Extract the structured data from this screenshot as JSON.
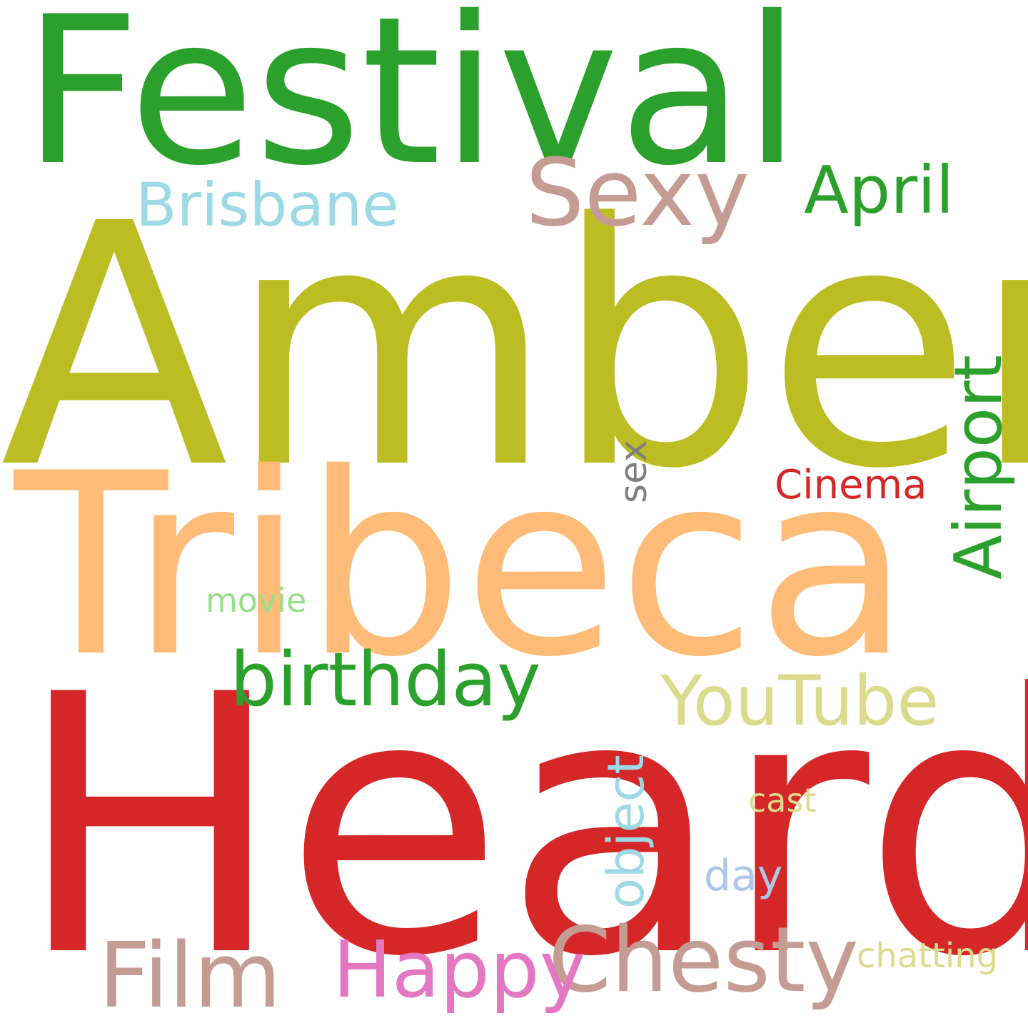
{
  "word_cloud": {
    "background": "#ffffff",
    "words": [
      {
        "key": "festival",
        "text": "Festival",
        "color": "#2ca02c",
        "orientation": "horizontal"
      },
      {
        "key": "amber",
        "text": "Amber",
        "color": "#bcbd22",
        "orientation": "horizontal"
      },
      {
        "key": "heard",
        "text": "Heard",
        "color": "#d62728",
        "orientation": "horizontal"
      },
      {
        "key": "tribeca",
        "text": "Tribeca",
        "color": "#ffbb78",
        "orientation": "horizontal"
      },
      {
        "key": "sexy",
        "text": "Sexy",
        "color": "#c49c94",
        "orientation": "horizontal"
      },
      {
        "key": "brisbane",
        "text": "Brisbane",
        "color": "#9edae5",
        "orientation": "horizontal"
      },
      {
        "key": "april",
        "text": "April",
        "color": "#2ca02c",
        "orientation": "horizontal"
      },
      {
        "key": "airport",
        "text": "Airport",
        "color": "#2ca02c",
        "orientation": "vertical"
      },
      {
        "key": "sex",
        "text": "sex",
        "color": "#7f7f7f",
        "orientation": "vertical"
      },
      {
        "key": "cinema",
        "text": "Cinema",
        "color": "#d62728",
        "orientation": "horizontal"
      },
      {
        "key": "movie",
        "text": "movie",
        "color": "#98df8a",
        "orientation": "horizontal"
      },
      {
        "key": "birthday",
        "text": "birthday",
        "color": "#2ca02c",
        "orientation": "horizontal"
      },
      {
        "key": "youtube",
        "text": "YouTube",
        "color": "#dbdb8d",
        "orientation": "horizontal"
      },
      {
        "key": "object",
        "text": "object",
        "color": "#9edae5",
        "orientation": "vertical"
      },
      {
        "key": "cast",
        "text": "cast",
        "color": "#dbdb8d",
        "orientation": "horizontal"
      },
      {
        "key": "day",
        "text": "day",
        "color": "#aec7e8",
        "orientation": "horizontal"
      },
      {
        "key": "chesty",
        "text": "Chesty",
        "color": "#c49c94",
        "orientation": "horizontal"
      },
      {
        "key": "film",
        "text": "Film",
        "color": "#c49c94",
        "orientation": "horizontal"
      },
      {
        "key": "happy",
        "text": "Happy",
        "color": "#e377c2",
        "orientation": "horizontal"
      },
      {
        "key": "chatting",
        "text": "chatting",
        "color": "#dbdb8d",
        "orientation": "horizontal"
      }
    ]
  }
}
